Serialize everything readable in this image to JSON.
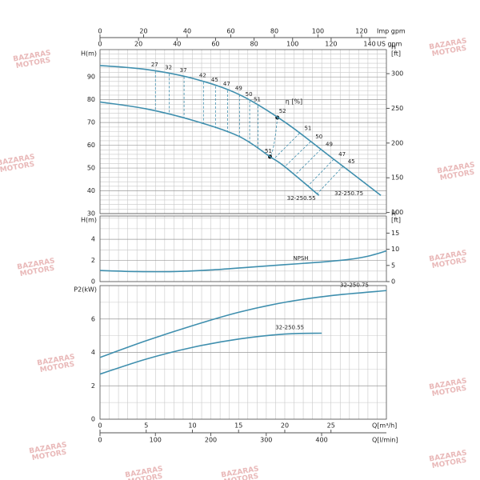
{
  "chart_data": [
    {
      "type": "line",
      "ylabel": "H(m)",
      "y2label": [
        "H",
        "[ft]"
      ],
      "xlim": [
        0,
        31
      ],
      "xgrid": [
        0,
        1,
        2,
        3,
        4,
        5,
        6,
        7,
        8,
        9,
        10,
        11,
        12,
        13,
        14,
        15,
        16,
        17,
        18,
        19,
        20,
        21,
        22,
        23,
        24,
        25,
        26,
        27,
        28,
        29,
        30,
        31
      ],
      "ylim": [
        30,
        102
      ],
      "yticks": [
        30,
        40,
        50,
        60,
        70,
        80,
        90
      ],
      "yminor": [
        32,
        34,
        36,
        38,
        42,
        44,
        46,
        48,
        52,
        54,
        56,
        58,
        62,
        64,
        66,
        68,
        72,
        74,
        76,
        78,
        82,
        84,
        86,
        88,
        92,
        94,
        96,
        98,
        100
      ],
      "y2lim": [
        98.4,
        334.6
      ],
      "y2ticks": [
        100,
        150,
        200,
        250,
        300
      ],
      "top_axes": [
        {
          "label": "Imp gpm",
          "lim": [
            0,
            131.4
          ],
          "ticks": [
            0,
            20,
            40,
            60,
            80,
            100,
            120
          ]
        },
        {
          "label": "US gpm",
          "lim": [
            0,
            148.7
          ],
          "ticks": [
            0,
            20,
            40,
            60,
            80,
            100,
            120,
            140
          ]
        }
      ],
      "series": [
        {
          "name": "32-250.75",
          "color": "#3f8fae",
          "x": [
            0,
            5,
            10,
            15,
            20,
            25,
            30.4
          ],
          "values": [
            95,
            93.3,
            89.4,
            82.4,
            70.2,
            54.8,
            38
          ]
        },
        {
          "name": "32-250.55",
          "color": "#3f8fae",
          "x": [
            0,
            5,
            10,
            15,
            18.4,
            20,
            23.7
          ],
          "values": [
            79,
            76,
            71,
            64,
            55,
            50.6,
            38
          ]
        }
      ],
      "efficiency": {
        "name": "η [%]",
        "x": [
          6.0,
          7.5,
          9.1,
          11.2,
          12.5,
          13.8,
          15.1,
          16.2,
          17.1,
          19.2,
          21.6,
          22.8,
          23.9,
          25.3,
          26.3
        ],
        "values": [
          27,
          32,
          37,
          42,
          45,
          47,
          49,
          50,
          51,
          52,
          51,
          50,
          49,
          47,
          45
        ]
      },
      "efficiency_lower": {
        "x": [
          18.4
        ],
        "values": [
          51
        ]
      },
      "watermark": [
        "BAZARAS",
        "MOTORS"
      ]
    },
    {
      "type": "line",
      "ylabel": "H(m)",
      "y2label": [
        "H",
        "[ft]"
      ],
      "xlim": [
        0,
        31
      ],
      "xgrid": [
        0,
        1,
        2,
        3,
        4,
        5,
        6,
        7,
        8,
        9,
        10,
        11,
        12,
        13,
        14,
        15,
        16,
        17,
        18,
        19,
        20,
        21,
        22,
        23,
        24,
        25,
        26,
        27,
        28,
        29,
        30,
        31
      ],
      "ylim": [
        0,
        6.2
      ],
      "yticks": [
        0,
        2,
        4
      ],
      "yminor": [
        1,
        3,
        5,
        6
      ],
      "y2lim": [
        0,
        20.3
      ],
      "y2ticks": [
        0,
        5,
        10,
        15
      ],
      "series": [
        {
          "name": "NPSH",
          "color": "#3f8fae",
          "x": [
            0,
            4,
            8,
            12,
            16,
            20,
            24,
            27,
            29,
            31
          ],
          "values": [
            1.05,
            0.95,
            0.95,
            1.1,
            1.35,
            1.6,
            1.85,
            2.1,
            2.4,
            2.9
          ]
        }
      ]
    },
    {
      "type": "line",
      "ylabel": "P2(kW)",
      "xlim": [
        0,
        31
      ],
      "xgrid": [
        0,
        1,
        2,
        3,
        4,
        5,
        6,
        7,
        8,
        9,
        10,
        11,
        12,
        13,
        14,
        15,
        16,
        17,
        18,
        19,
        20,
        21,
        22,
        23,
        24,
        25,
        26,
        27,
        28,
        29,
        30,
        31
      ],
      "ylim": [
        0,
        8
      ],
      "yticks": [
        0,
        2,
        4,
        6
      ],
      "yminor": [
        1,
        3,
        5,
        7,
        8
      ],
      "xlabel": "Q[m³/h]",
      "xticks": [
        0,
        5,
        10,
        15,
        20,
        25
      ],
      "bottom_axis": {
        "label": "Q[l/min]",
        "lim": [
          0,
          516.9
        ],
        "ticks": [
          0,
          100,
          200,
          300,
          400
        ]
      },
      "series": [
        {
          "name": "32-250.75",
          "color": "#3f8fae",
          "x": [
            0,
            5,
            10,
            15,
            20,
            25,
            31
          ],
          "values": [
            3.7,
            4.7,
            5.6,
            6.4,
            7.0,
            7.4,
            7.7
          ]
        },
        {
          "name": "32-250.55",
          "color": "#3f8fae",
          "x": [
            0,
            5,
            10,
            15,
            20,
            24
          ],
          "values": [
            2.7,
            3.6,
            4.3,
            4.8,
            5.1,
            5.15
          ]
        }
      ]
    }
  ]
}
